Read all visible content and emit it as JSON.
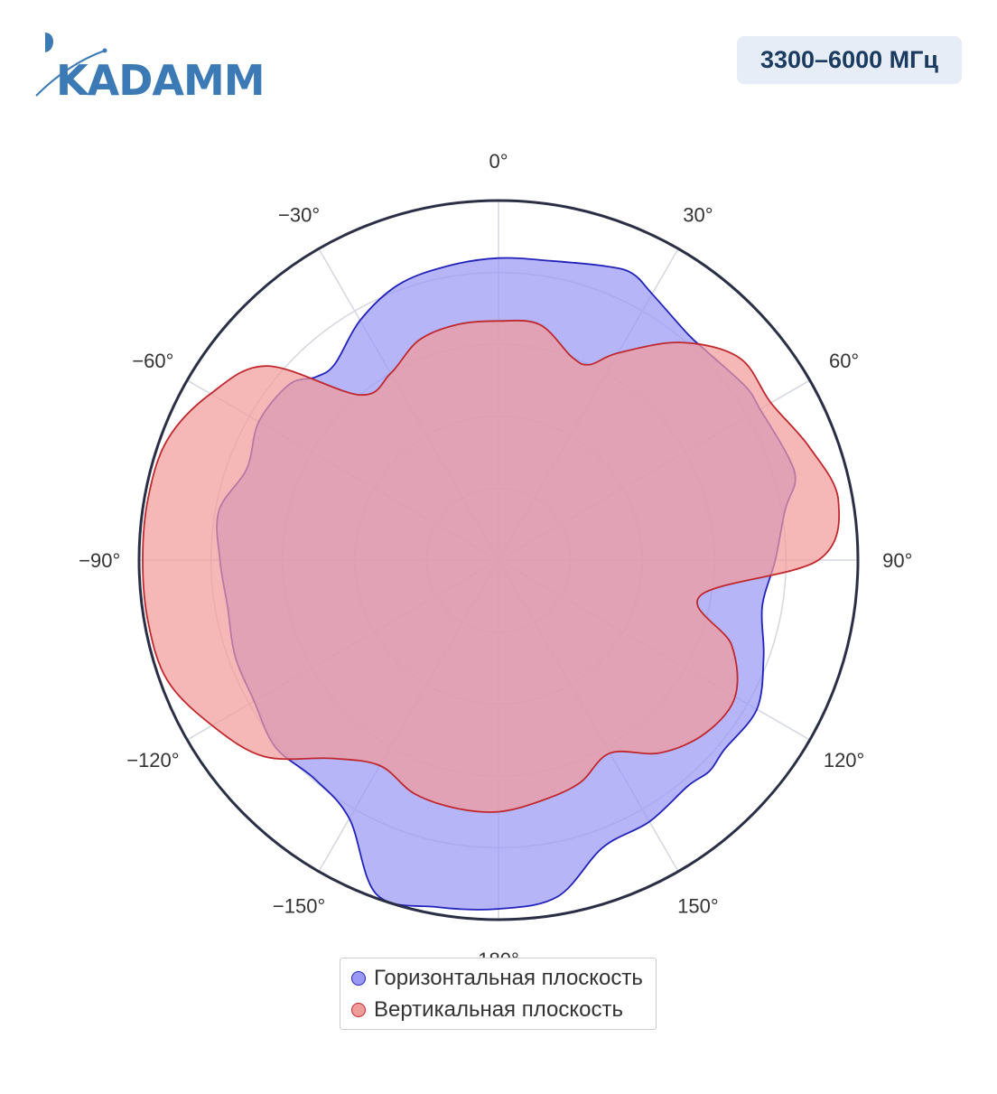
{
  "logo": {
    "text": "KADAMM"
  },
  "header": {
    "frequency_badge": "3300–6000 МГц"
  },
  "colors": {
    "horizontal_fill": "#9999f5",
    "horizontal_line": "#2222bb",
    "vertical_fill": "#f29b9b",
    "vertical_line": "#c0282d",
    "logo": "#3c7ab6",
    "badge_bg": "#e6edf6",
    "badge_text": "#1a3a5f"
  },
  "chart_data": {
    "type": "polar-area",
    "angular_direction": "clockwise",
    "zero_direction": "top",
    "angular_ticks": [
      {
        "angle": 0,
        "label": "0°"
      },
      {
        "angle": 30,
        "label": "30°"
      },
      {
        "angle": 60,
        "label": "60°"
      },
      {
        "angle": 90,
        "label": "90°"
      },
      {
        "angle": 120,
        "label": "120°"
      },
      {
        "angle": 150,
        "label": "150°"
      },
      {
        "angle": 180,
        "label": "180°"
      },
      {
        "angle": -150,
        "label": "−150°"
      },
      {
        "angle": -120,
        "label": "−120°"
      },
      {
        "angle": -90,
        "label": "−90°"
      },
      {
        "angle": -60,
        "label": "−60°"
      },
      {
        "angle": -30,
        "label": "−30°"
      }
    ],
    "radial_range": [
      0,
      1
    ],
    "radial_gridlines": [
      0.2,
      0.4,
      0.6,
      0.8
    ],
    "grid": true,
    "legend_position": "bottom-center",
    "series": [
      {
        "name": "Горизонтальная плоскость",
        "color_key": "horizontal",
        "points": [
          [
            0,
            0.84
          ],
          [
            10,
            0.845
          ],
          [
            20,
            0.87
          ],
          [
            25,
            0.88
          ],
          [
            30,
            0.855
          ],
          [
            40,
            0.82
          ],
          [
            45,
            0.82
          ],
          [
            55,
            0.84
          ],
          [
            60,
            0.84
          ],
          [
            70,
            0.855
          ],
          [
            75,
            0.855
          ],
          [
            80,
            0.81
          ],
          [
            90,
            0.77
          ],
          [
            100,
            0.745
          ],
          [
            110,
            0.785
          ],
          [
            120,
            0.83
          ],
          [
            130,
            0.82
          ],
          [
            135,
            0.83
          ],
          [
            140,
            0.82
          ],
          [
            150,
            0.84
          ],
          [
            160,
            0.85
          ],
          [
            170,
            0.95
          ],
          [
            180,
            0.97
          ],
          [
            190,
            0.98
          ],
          [
            200,
            0.99
          ],
          [
            210,
            0.83
          ],
          [
            220,
            0.795
          ],
          [
            230,
            0.81
          ],
          [
            240,
            0.785
          ],
          [
            250,
            0.78
          ],
          [
            260,
            0.765
          ],
          [
            270,
            0.775
          ],
          [
            280,
            0.79
          ],
          [
            290,
            0.745
          ],
          [
            300,
            0.77
          ],
          [
            310,
            0.76
          ],
          [
            315,
            0.72
          ],
          [
            320,
            0.71
          ],
          [
            330,
            0.77
          ],
          [
            340,
            0.815
          ],
          [
            350,
            0.83
          ],
          [
            360,
            0.84
          ]
        ]
      },
      {
        "name": "Вертикальная плоскость",
        "color_key": "vertical",
        "points": [
          [
            0,
            0.665
          ],
          [
            10,
            0.665
          ],
          [
            20,
            0.6
          ],
          [
            25,
            0.6
          ],
          [
            30,
            0.665
          ],
          [
            40,
            0.79
          ],
          [
            50,
            0.875
          ],
          [
            60,
            0.875
          ],
          [
            70,
            0.92
          ],
          [
            80,
            0.96
          ],
          [
            90,
            0.89
          ],
          [
            100,
            0.57
          ],
          [
            110,
            0.69
          ],
          [
            120,
            0.76
          ],
          [
            130,
            0.75
          ],
          [
            140,
            0.7
          ],
          [
            150,
            0.62
          ],
          [
            160,
            0.66
          ],
          [
            170,
            0.68
          ],
          [
            180,
            0.7
          ],
          [
            190,
            0.7
          ],
          [
            200,
            0.69
          ],
          [
            210,
            0.66
          ],
          [
            220,
            0.72
          ],
          [
            230,
            0.85
          ],
          [
            240,
            0.92
          ],
          [
            250,
            0.98
          ],
          [
            260,
            0.99
          ],
          [
            270,
            0.99
          ],
          [
            280,
            0.99
          ],
          [
            290,
            0.98
          ],
          [
            300,
            0.925
          ],
          [
            310,
            0.84
          ],
          [
            320,
            0.6
          ],
          [
            330,
            0.6
          ],
          [
            340,
            0.65
          ],
          [
            350,
            0.665
          ],
          [
            360,
            0.665
          ]
        ]
      }
    ]
  }
}
